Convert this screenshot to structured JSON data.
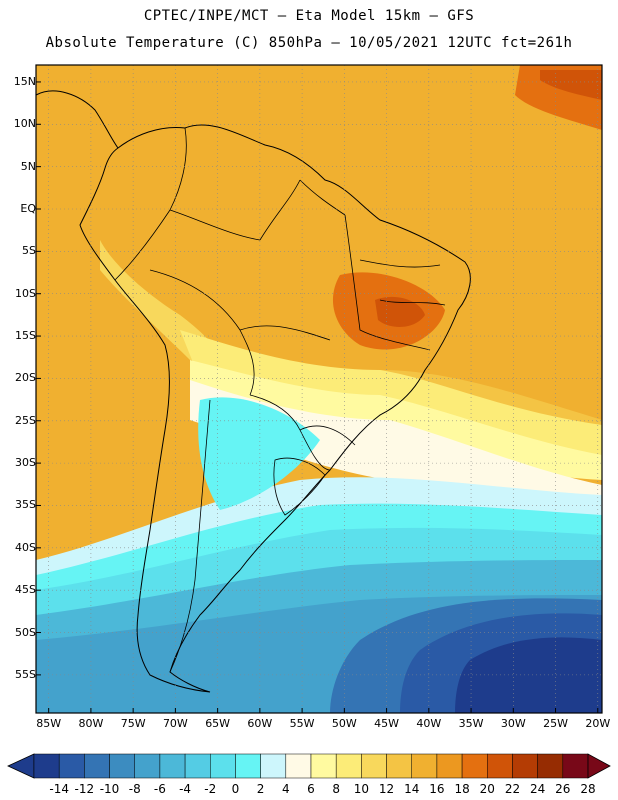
{
  "header": {
    "line1": "CPTEC/INPE/MCT –  Eta Model 15km – GFS",
    "line2": "Absolute Temperature (C) 850hPa – 10/05/2021 12UTC fct=261h"
  },
  "map": {
    "lat_labels": [
      "15N",
      "10N",
      "5N",
      "EQ",
      "5S",
      "10S",
      "15S",
      "20S",
      "25S",
      "30S",
      "35S",
      "40S",
      "45S",
      "50S",
      "55S"
    ],
    "lon_labels": [
      "85W",
      "80W",
      "75W",
      "70W",
      "65W",
      "60W",
      "55W",
      "50W",
      "45W",
      "40W",
      "35W",
      "30W",
      "25W",
      "20W"
    ],
    "lat_values": [
      15,
      10,
      5,
      0,
      -5,
      -10,
      -15,
      -20,
      -25,
      -30,
      -35,
      -40,
      -45,
      -50,
      -55
    ],
    "lon_values": [
      -85,
      -80,
      -75,
      -70,
      -65,
      -60,
      -55,
      -50,
      -45,
      -40,
      -35,
      -30,
      -25,
      -20
    ]
  },
  "colorbar": {
    "labels": [
      "-14",
      "-12",
      "-10",
      "-8",
      "-6",
      "-4",
      "-2",
      "0",
      "2",
      "4",
      "6",
      "8",
      "10",
      "12",
      "14",
      "16",
      "18",
      "20",
      "22",
      "24",
      "26",
      "28"
    ],
    "colors": [
      "#1e3c8c",
      "#2a5aa6",
      "#3474b4",
      "#3c8cc0",
      "#44a2cc",
      "#4cb8d8",
      "#54cce4",
      "#5ce0ec",
      "#66f4f4",
      "#cdf6fc",
      "#fffae6",
      "#fffaa0",
      "#fcec78",
      "#f8d85c",
      "#f4c444",
      "#f0b030",
      "#ec9820",
      "#e47010",
      "#d05408",
      "#b43c04",
      "#962c02",
      "#780818"
    ]
  }
}
